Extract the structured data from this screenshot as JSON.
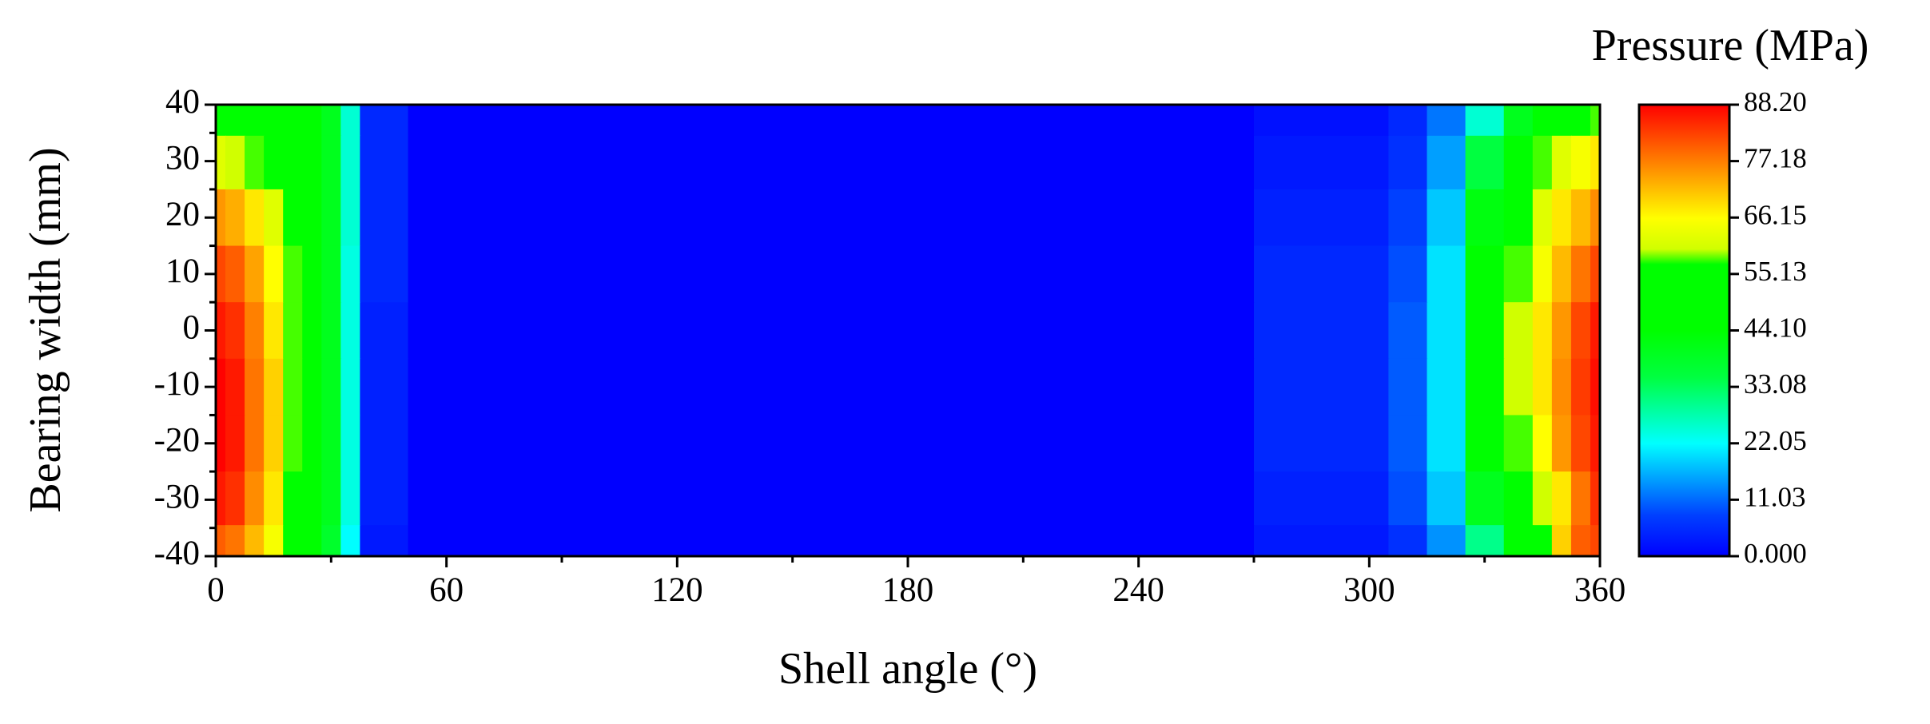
{
  "chart_data": {
    "type": "contour",
    "x_label": "Shell angle (°)",
    "y_label": "Bearing width (mm)",
    "colorbar_title": "Pressure (MPa)",
    "x": [
      0,
      5,
      10,
      15,
      20,
      25,
      30,
      35,
      40,
      60,
      120,
      180,
      240,
      300,
      310,
      320,
      330,
      340,
      345,
      350,
      355,
      360
    ],
    "y": [
      39,
      30,
      20,
      10,
      0,
      -10,
      -20,
      -30,
      -39
    ],
    "z": [
      [
        50,
        50,
        48,
        48,
        47,
        45,
        40,
        25,
        5,
        0,
        0,
        0,
        0,
        2,
        5,
        12,
        25,
        40,
        48,
        52,
        55,
        58
      ],
      [
        62,
        60,
        58,
        55,
        52,
        48,
        40,
        25,
        5,
        0,
        0,
        0,
        0,
        3,
        6,
        15,
        35,
        52,
        58,
        62,
        65,
        68
      ],
      [
        75,
        73,
        68,
        62,
        55,
        50,
        40,
        25,
        5,
        0,
        0,
        0,
        0,
        4,
        8,
        18,
        42,
        56,
        62,
        68,
        72,
        76
      ],
      [
        82,
        80,
        74,
        66,
        58,
        50,
        40,
        24,
        5,
        0,
        0,
        0,
        0,
        5,
        9,
        20,
        45,
        58,
        65,
        72,
        78,
        82
      ],
      [
        86,
        84,
        77,
        68,
        58,
        50,
        40,
        24,
        4,
        0,
        0,
        0,
        0,
        5,
        10,
        20,
        45,
        60,
        68,
        75,
        82,
        86
      ],
      [
        88,
        86,
        78,
        70,
        58,
        50,
        40,
        24,
        4,
        0,
        0,
        0,
        0,
        5,
        10,
        20,
        45,
        60,
        68,
        76,
        83,
        87
      ],
      [
        88,
        86,
        78,
        70,
        58,
        50,
        40,
        24,
        4,
        0,
        0,
        0,
        0,
        5,
        10,
        20,
        44,
        58,
        66,
        75,
        82,
        86
      ],
      [
        86,
        84,
        76,
        68,
        57,
        50,
        40,
        24,
        4,
        0,
        0,
        0,
        0,
        4,
        9,
        18,
        40,
        55,
        60,
        68,
        78,
        84
      ],
      [
        80,
        78,
        72,
        65,
        55,
        48,
        38,
        22,
        3,
        0,
        0,
        0,
        0,
        3,
        6,
        14,
        30,
        45,
        55,
        70,
        80,
        82
      ]
    ],
    "xlim": [
      0,
      360
    ],
    "xticks": [
      0,
      60,
      120,
      180,
      240,
      300,
      360
    ],
    "xminorticks": [
      30,
      90,
      150,
      210,
      270,
      330
    ],
    "ylim": [
      -40,
      40
    ],
    "yticks": [
      -40,
      -30,
      -20,
      -10,
      0,
      10,
      20,
      30,
      40
    ],
    "yminorticks": [
      -35,
      -25,
      -15,
      -5,
      5,
      15,
      25,
      35
    ],
    "clim": [
      0,
      88.2
    ],
    "cticks": [
      {
        "value": 0,
        "label": "0.000"
      },
      11.03,
      22.05,
      33.08,
      {
        "value": 44.1,
        "label": "44.10"
      },
      {
        "value": 55.13,
        "label": "55.13"
      },
      66.15,
      {
        "value": 77.18,
        "label": "77.18"
      },
      {
        "value": 88.2,
        "label": "88.20"
      }
    ],
    "colorscale": [
      [
        0,
        "#0000ff"
      ],
      [
        8,
        "#0040ff"
      ],
      [
        22.05,
        "#00ffff"
      ],
      [
        35,
        "#00ff40"
      ],
      [
        44.1,
        "#00ff00"
      ],
      [
        57,
        "#00ff00"
      ],
      [
        60,
        "#d0ff00"
      ],
      [
        66,
        "#ffff00"
      ],
      [
        77,
        "#ff8000"
      ],
      [
        88.2,
        "#ff0000"
      ]
    ]
  }
}
